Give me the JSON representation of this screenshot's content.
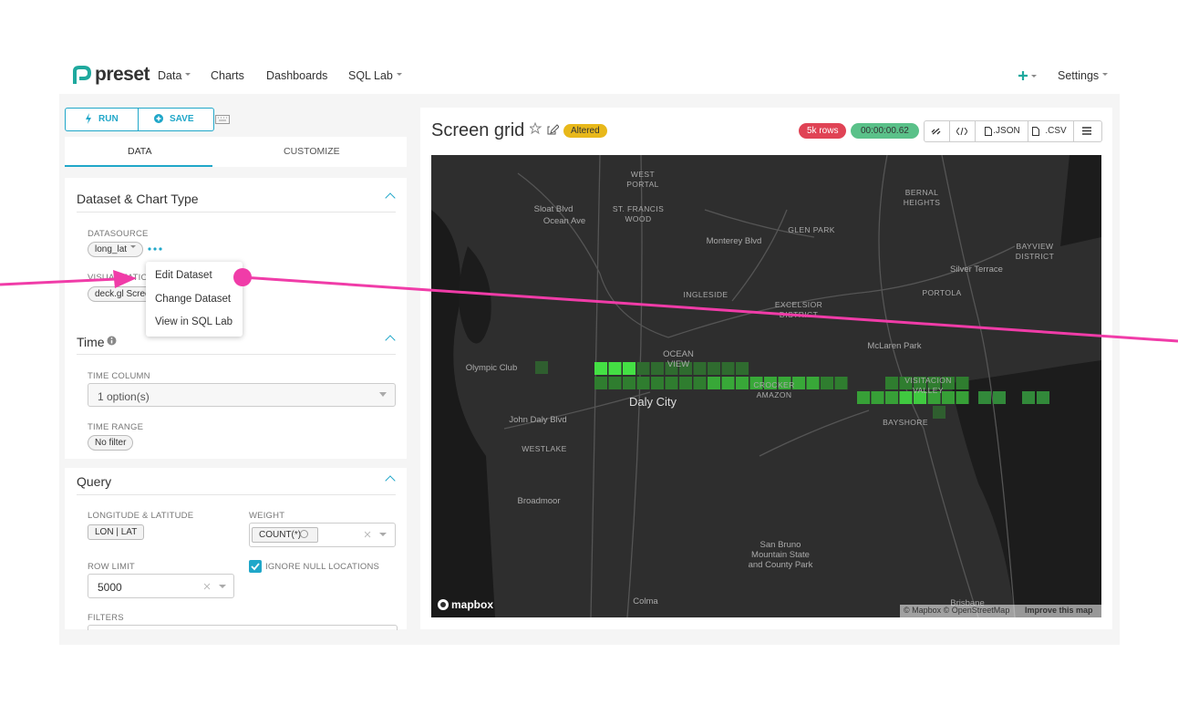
{
  "nav": {
    "brand": "preset",
    "items": [
      "Data",
      "Charts",
      "Dashboards",
      "SQL Lab"
    ],
    "settings": "Settings"
  },
  "toolbar": {
    "run": "RUN",
    "save": "SAVE"
  },
  "tabs": [
    "DATA",
    "CUSTOMIZE"
  ],
  "dataset_section": {
    "title": "Dataset & Chart Type",
    "datasource_label": "DATASOURCE",
    "datasource": "long_lat",
    "visualization_label": "VISUALIZATION TYPE",
    "visualization": "deck.gl Screen Grid"
  },
  "menu": [
    "Edit Dataset",
    "Change Dataset",
    "View in SQL Lab"
  ],
  "time_section": {
    "title": "Time",
    "time_column_label": "TIME COLUMN",
    "time_column": "1 option(s)",
    "time_range_label": "TIME RANGE",
    "time_range": "No filter"
  },
  "query_section": {
    "title": "Query",
    "lonlat_label": "LONGITUDE & LATITUDE",
    "lonlat": "LON | LAT",
    "weight_label": "WEIGHT",
    "weight": "COUNT(*)",
    "row_limit_label": "ROW LIMIT",
    "row_limit": "5000",
    "ignore_null": "IGNORE NULL LOCATIONS",
    "filters_label": "FILTERS"
  },
  "chart_header": {
    "title": "Screen grid",
    "altered": "Altered",
    "rows": "5k rows",
    "timer": "00:00:00.62",
    "json": ".JSON",
    "csv": ".CSV"
  },
  "map": {
    "labels": [
      "WEST PORTAL",
      "Sloat Blvd",
      "Ocean Ave",
      "ST. FRANCIS WOOD",
      "BERNAL HEIGHTS",
      "GLEN PARK",
      "Monterey Blvd",
      "BAYVIEW DISTRICT",
      "Silver Terrace",
      "INGLESIDE",
      "EXCELSIOR DISTRICT",
      "PORTOLA",
      "McLaren Park",
      "OCEAN VIEW",
      "Olympic Club",
      "VISITACION VALLEY",
      "CROCKER AMAZON",
      "Daly City",
      "BAYSHORE",
      "John Daly Blvd",
      "WESTLAKE",
      "Broadmoor",
      "San Bruno Mountain State and County Park",
      "Colma",
      "Brisbane"
    ],
    "logo": "mapbox",
    "attribution": "© Mapbox © OpenStreetMap",
    "improve": "Improve this map"
  }
}
